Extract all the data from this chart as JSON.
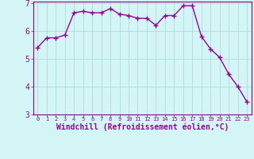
{
  "x": [
    0,
    1,
    2,
    3,
    4,
    5,
    6,
    7,
    8,
    9,
    10,
    11,
    12,
    13,
    14,
    15,
    16,
    17,
    18,
    19,
    20,
    21,
    22,
    23
  ],
  "y": [
    5.4,
    5.75,
    5.75,
    5.85,
    6.65,
    6.7,
    6.65,
    6.65,
    6.8,
    6.6,
    6.55,
    6.45,
    6.45,
    6.2,
    6.55,
    6.55,
    6.9,
    6.9,
    5.8,
    5.35,
    5.05,
    4.45,
    4.0,
    3.45
  ],
  "line_color": "#990099",
  "marker": "+",
  "markersize": 4,
  "linewidth": 1.0,
  "xlabel": "Windchill (Refroidissement éolien,°C)",
  "xlabel_fontsize": 7,
  "ylim": [
    3,
    7
  ],
  "xlim": [
    -0.5,
    23.5
  ],
  "yticks": [
    3,
    4,
    5,
    6,
    7
  ],
  "xticks": [
    0,
    1,
    2,
    3,
    4,
    5,
    6,
    7,
    8,
    9,
    10,
    11,
    12,
    13,
    14,
    15,
    16,
    17,
    18,
    19,
    20,
    21,
    22,
    23
  ],
  "background_color": "#d4f5f5",
  "grid_color": "#aadddd",
  "spine_color": "#880088",
  "tick_color": "#990099",
  "label_color": "#990099"
}
